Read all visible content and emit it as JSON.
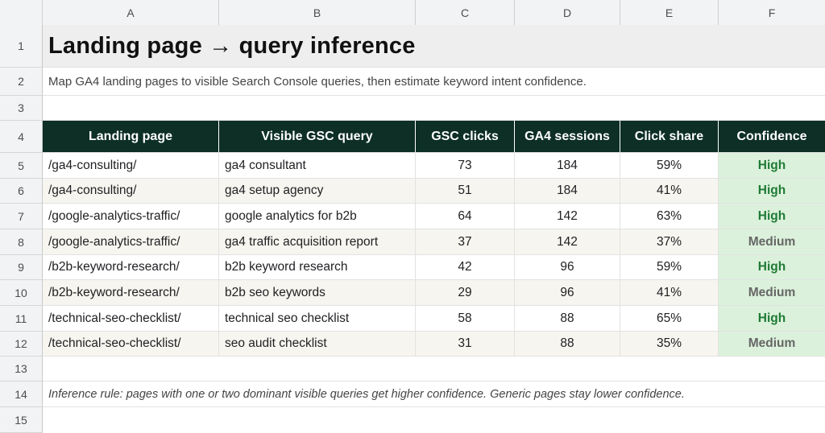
{
  "columns": [
    "A",
    "B",
    "C",
    "D",
    "E",
    "F"
  ],
  "rows": [
    "1",
    "2",
    "3",
    "4",
    "5",
    "6",
    "7",
    "8",
    "9",
    "10",
    "11",
    "12",
    "13",
    "14",
    "15"
  ],
  "title": "Landing page → query inference",
  "subtitle": "Map GA4 landing pages to visible Search Console queries, then estimate keyword intent confidence.",
  "table": {
    "headers": [
      "Landing page",
      "Visible GSC query",
      "GSC clicks",
      "GA4 sessions",
      "Click share",
      "Confidence"
    ],
    "rows": [
      {
        "page": "/ga4-consulting/",
        "query": "ga4 consultant",
        "clicks": "73",
        "sessions": "184",
        "share": "59%",
        "confidence": "High"
      },
      {
        "page": "/ga4-consulting/",
        "query": "ga4 setup agency",
        "clicks": "51",
        "sessions": "184",
        "share": "41%",
        "confidence": "High"
      },
      {
        "page": "/google-analytics-traffic/",
        "query": "google analytics for b2b",
        "clicks": "64",
        "sessions": "142",
        "share": "63%",
        "confidence": "High"
      },
      {
        "page": "/google-analytics-traffic/",
        "query": "ga4 traffic acquisition report",
        "clicks": "37",
        "sessions": "142",
        "share": "37%",
        "confidence": "Medium"
      },
      {
        "page": "/b2b-keyword-research/",
        "query": "b2b keyword research",
        "clicks": "42",
        "sessions": "96",
        "share": "59%",
        "confidence": "High"
      },
      {
        "page": "/b2b-keyword-research/",
        "query": "b2b seo keywords",
        "clicks": "29",
        "sessions": "96",
        "share": "41%",
        "confidence": "Medium"
      },
      {
        "page": "/technical-seo-checklist/",
        "query": "technical seo checklist",
        "clicks": "58",
        "sessions": "88",
        "share": "65%",
        "confidence": "High"
      },
      {
        "page": "/technical-seo-checklist/",
        "query": "seo audit checklist",
        "clicks": "31",
        "sessions": "88",
        "share": "35%",
        "confidence": "Medium"
      }
    ]
  },
  "note": "Inference rule: pages with one or two dominant visible queries get higher confidence. Generic pages stay lower confidence.",
  "colors": {
    "header_bg": "#0d2f25",
    "confidence_bg": "#dbf1db",
    "high": "#1f7a35",
    "medium": "#666666",
    "alt_row": "#f7f5ef"
  }
}
